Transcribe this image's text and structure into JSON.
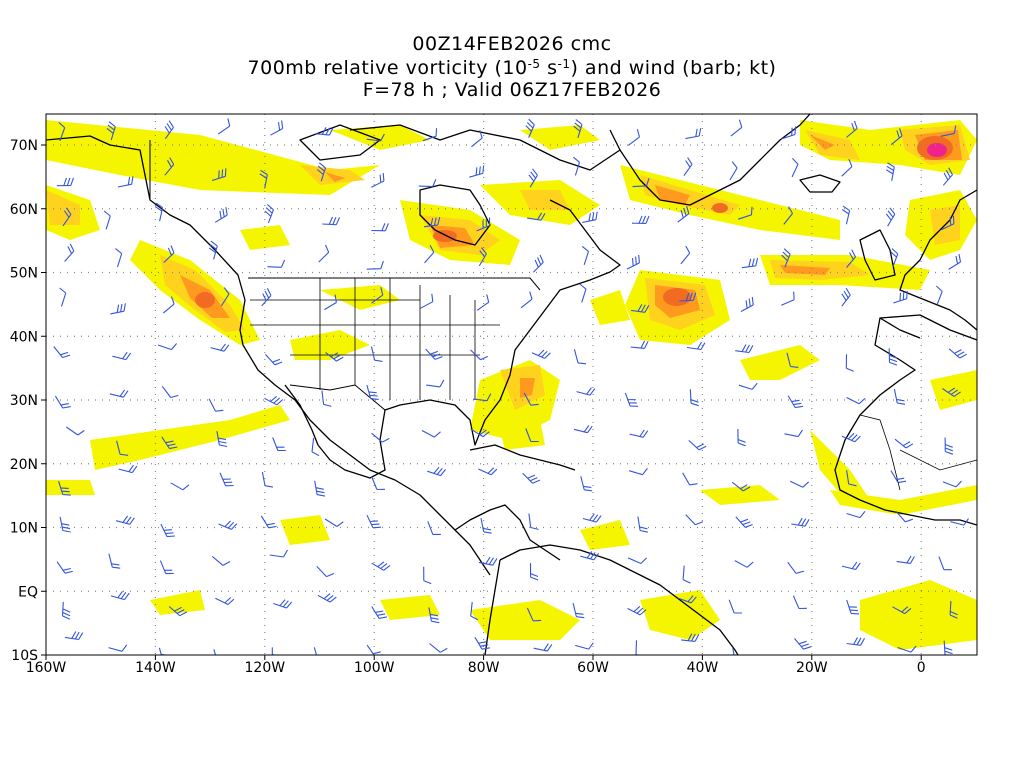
{
  "title": {
    "line1": "00Z14FEB2026 cmc",
    "line2_prefix": "700mb relative vorticity (10",
    "line2_exp1": "-5",
    "line2_mid": " s",
    "line2_exp2": "-1",
    "line2_suffix": ") and wind (barb; kt)",
    "line3": "F=78 h ; Valid 06Z17FEB2026"
  },
  "map": {
    "projection": "cylindrical equidistant",
    "lon_range": [
      "160W",
      "10E"
    ],
    "lat_range": [
      "10S",
      "75N"
    ],
    "grid": "dotted",
    "lat_labels": [
      "70N",
      "60N",
      "50N",
      "40N",
      "30N",
      "20N",
      "10N",
      "EQ",
      "10S"
    ],
    "lon_labels": [
      "160W",
      "140W",
      "120W",
      "100W",
      "80W",
      "60W",
      "40W",
      "20W",
      "0"
    ],
    "colors": {
      "vorticity_low": "#f5f500",
      "vorticity_mid": "#ffd21e",
      "vorticity_high": "#ff9a1e",
      "vorticity_higher": "#f26b22",
      "vorticity_max": "#f0238c",
      "wind_barb": "#3355dd",
      "coastline": "#000000"
    }
  }
}
